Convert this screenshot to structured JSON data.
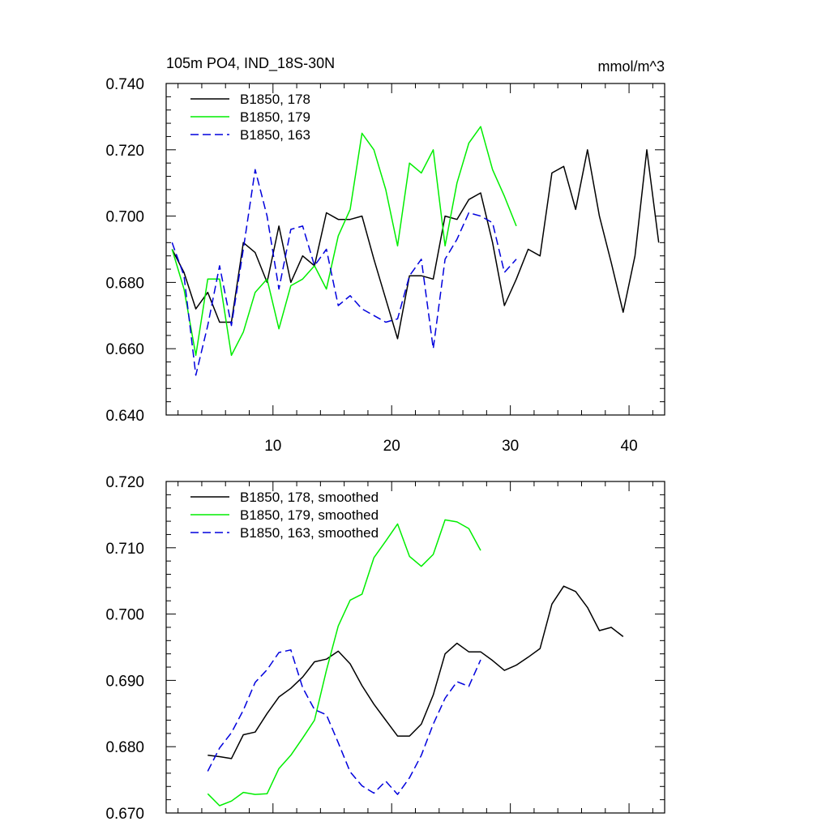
{
  "chart_data": [
    {
      "type": "line",
      "title": "105m PO4, IND_18S-30N",
      "units_label": "mmol/m^3",
      "xlabel": "",
      "ylabel": "",
      "xlim": [
        1,
        43
      ],
      "ylim": [
        0.64,
        0.74
      ],
      "x_ticks": [
        10,
        20,
        30,
        40
      ],
      "x_tick_labels": [
        "10",
        "20",
        "30",
        "40"
      ],
      "y_ticks": [
        0.64,
        0.66,
        0.68,
        0.7,
        0.72,
        0.74
      ],
      "y_tick_labels": [
        "0.640",
        "0.660",
        "0.680",
        "0.700",
        "0.720",
        "0.740"
      ],
      "legend_position": "top-left",
      "series": [
        {
          "name": "B1850, 178",
          "color": "#000000",
          "dash": "solid",
          "x": [
            1.5,
            2.5,
            3.5,
            4.5,
            5.5,
            6.5,
            7.5,
            8.5,
            9.5,
            10.5,
            11.5,
            12.5,
            13.5,
            14.5,
            15.5,
            16.5,
            17.5,
            18.5,
            19.5,
            20.5,
            21.5,
            22.5,
            23.5,
            24.5,
            25.5,
            26.5,
            27.5,
            28.5,
            29.5,
            30.5,
            31.5,
            32.5,
            33.5,
            34.5,
            35.5,
            36.5,
            37.5,
            38.5,
            39.5,
            40.5,
            41.5,
            42.5
          ],
          "values": [
            0.69,
            0.683,
            0.672,
            0.677,
            0.668,
            0.668,
            0.692,
            0.689,
            0.68,
            0.697,
            0.68,
            0.688,
            0.685,
            0.701,
            0.699,
            0.699,
            0.7,
            0.687,
            0.675,
            0.663,
            0.682,
            0.682,
            0.681,
            0.7,
            0.699,
            0.705,
            0.707,
            0.692,
            0.673,
            0.681,
            0.69,
            0.688,
            0.713,
            0.715,
            0.702,
            0.72,
            0.7,
            0.686,
            0.671,
            0.688,
            0.72,
            0.692
          ]
        },
        {
          "name": "B1850, 179",
          "color": "#00ee00",
          "dash": "solid",
          "x": [
            1.5,
            2.5,
            3.5,
            4.5,
            5.5,
            6.5,
            7.5,
            8.5,
            9.5,
            10.5,
            11.5,
            12.5,
            13.5,
            14.5,
            15.5,
            16.5,
            17.5,
            18.5,
            19.5,
            20.5,
            21.5,
            22.5,
            23.5,
            24.5,
            25.5,
            26.5,
            27.5,
            28.5,
            29.5,
            30.5
          ],
          "values": [
            0.69,
            0.678,
            0.658,
            0.681,
            0.681,
            0.658,
            0.665,
            0.677,
            0.681,
            0.666,
            0.679,
            0.681,
            0.685,
            0.678,
            0.694,
            0.702,
            0.725,
            0.72,
            0.708,
            0.691,
            0.716,
            0.713,
            0.72,
            0.691,
            0.71,
            0.722,
            0.727,
            0.714,
            0.706,
            0.697
          ]
        },
        {
          "name": "B1850, 163",
          "color": "#0000dd",
          "dash": "dashed",
          "x": [
            1.5,
            2.5,
            3.5,
            4.5,
            5.5,
            6.5,
            7.5,
            8.5,
            9.5,
            10.5,
            11.5,
            12.5,
            13.5,
            14.5,
            15.5,
            16.5,
            17.5,
            18.5,
            19.5,
            20.5,
            21.5,
            22.5,
            23.5,
            24.5,
            25.5,
            26.5,
            27.5,
            28.5,
            29.5,
            30.5
          ],
          "values": [
            0.692,
            0.682,
            0.652,
            0.667,
            0.685,
            0.667,
            0.69,
            0.714,
            0.7,
            0.678,
            0.696,
            0.697,
            0.685,
            0.69,
            0.673,
            0.676,
            0.672,
            0.67,
            0.668,
            0.669,
            0.682,
            0.687,
            0.66,
            0.687,
            0.693,
            0.701,
            0.7,
            0.698,
            0.683,
            0.687
          ]
        }
      ]
    },
    {
      "type": "line",
      "title": "",
      "xlabel": "",
      "ylabel": "",
      "xlim": [
        1,
        43
      ],
      "ylim": [
        0.67,
        0.72
      ],
      "x_ticks": [
        10,
        20,
        30,
        40
      ],
      "x_tick_labels": [],
      "y_ticks": [
        0.67,
        0.68,
        0.69,
        0.7,
        0.71,
        0.72
      ],
      "y_tick_labels": [
        "0.670",
        "0.680",
        "0.690",
        "0.700",
        "0.710",
        "0.720"
      ],
      "legend_position": "top-left",
      "series": [
        {
          "name": "B1850, 178, smoothed",
          "color": "#000000",
          "dash": "solid",
          "x": [
            4.5,
            5.5,
            6.5,
            7.5,
            8.5,
            9.5,
            10.5,
            11.5,
            12.5,
            13.5,
            14.5,
            15.5,
            16.5,
            17.5,
            18.5,
            19.5,
            20.5,
            21.5,
            22.5,
            23.5,
            24.5,
            25.5,
            26.5,
            27.5,
            28.5,
            29.5,
            30.5,
            31.5,
            32.5,
            33.5,
            34.5,
            35.5,
            36.5,
            37.5,
            38.5,
            39.5
          ],
          "values": [
            0.6787,
            0.6785,
            0.6782,
            0.6818,
            0.6822,
            0.685,
            0.6875,
            0.6888,
            0.6905,
            0.6928,
            0.6932,
            0.6944,
            0.6925,
            0.6892,
            0.6864,
            0.684,
            0.6816,
            0.6816,
            0.6834,
            0.6878,
            0.694,
            0.6956,
            0.6943,
            0.6943,
            0.693,
            0.6915,
            0.6923,
            0.6935,
            0.6948,
            0.7015,
            0.7042,
            0.7034,
            0.701,
            0.6975,
            0.698,
            0.6966
          ]
        },
        {
          "name": "B1850, 179, smoothed",
          "color": "#00ee00",
          "dash": "solid",
          "x": [
            4.5,
            5.5,
            6.5,
            7.5,
            8.5,
            9.5,
            10.5,
            11.5,
            12.5,
            13.5,
            14.5,
            15.5,
            16.5,
            17.5,
            18.5,
            19.5,
            20.5,
            21.5,
            22.5,
            23.5,
            24.5,
            25.5,
            26.5,
            27.5
          ],
          "values": [
            0.6729,
            0.6711,
            0.6718,
            0.6731,
            0.6728,
            0.6729,
            0.6767,
            0.6787,
            0.6813,
            0.684,
            0.6915,
            0.6982,
            0.7021,
            0.703,
            0.7085,
            0.711,
            0.7136,
            0.7087,
            0.7072,
            0.709,
            0.7142,
            0.7139,
            0.7129,
            0.7096
          ]
        },
        {
          "name": "B1850, 163, smoothed",
          "color": "#0000dd",
          "dash": "dashed",
          "x": [
            4.5,
            5.5,
            6.5,
            7.5,
            8.5,
            9.5,
            10.5,
            11.5,
            12.5,
            13.5,
            14.5,
            15.5,
            16.5,
            17.5,
            18.5,
            19.5,
            20.5,
            21.5,
            22.5,
            23.5,
            24.5,
            25.5,
            26.5,
            27.5
          ],
          "values": [
            0.6763,
            0.6798,
            0.6821,
            0.6855,
            0.6897,
            0.6916,
            0.6942,
            0.6946,
            0.6889,
            0.6856,
            0.6848,
            0.6806,
            0.6762,
            0.6741,
            0.673,
            0.6748,
            0.6728,
            0.6753,
            0.6787,
            0.6834,
            0.6873,
            0.6898,
            0.6891,
            0.6931
          ]
        }
      ]
    }
  ]
}
